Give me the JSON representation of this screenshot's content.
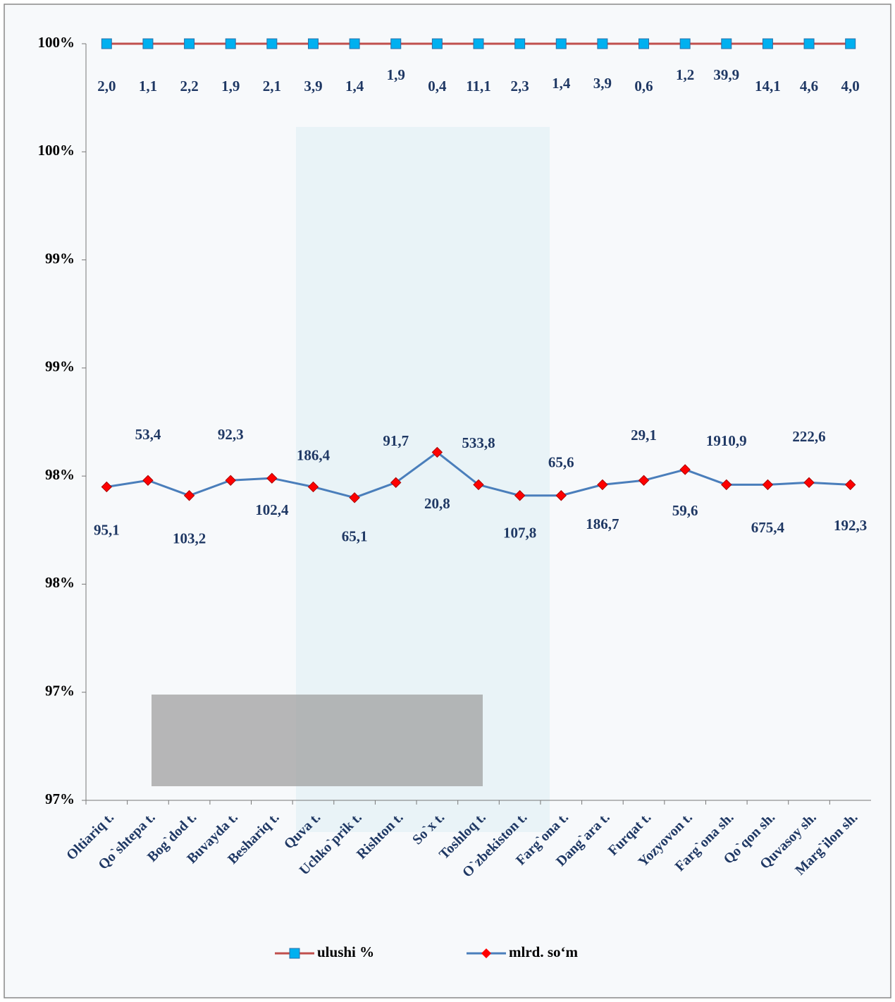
{
  "chart_data": {
    "type": "line",
    "categories": [
      "Oltiariq t.",
      "Qo`shtepa t.",
      "Bog`dod t.",
      "Buvayda t.",
      "Beshariq t.",
      "Quva t.",
      "Uchko`prik t.",
      "Rishton t.",
      "So`x t.",
      "Toshloq t.",
      "O`zbekiston t.",
      "Farg`ona t.",
      "Dang`ara t.",
      "Furqat t.",
      "Yozyovon t.",
      "Farg`ona sh.",
      "Qo`qon sh.",
      "Quvasoy sh.",
      "Marg`ilon sh."
    ],
    "series": [
      {
        "name": "ulushi %",
        "color": "#c0504d",
        "marker_color": "#00b0f0",
        "values": [
          100,
          100,
          100,
          100,
          100,
          100,
          100,
          100,
          100,
          100,
          100,
          100,
          100,
          100,
          100,
          100,
          100,
          100,
          100
        ],
        "point_labels": [
          "2,0",
          "1,1",
          "2,2",
          "1,9",
          "2,1",
          "3,9",
          "1,4",
          "1,9",
          "0,4",
          "11,1",
          "2,3",
          "1,4",
          "3,9",
          "0,6",
          "1,2",
          "39,9",
          "14,1",
          "4,6",
          "4,0"
        ]
      },
      {
        "name": "mlrd. so‘m",
        "color": "#4a7ebb",
        "marker_color": "#ff0000",
        "values": [
          97.95,
          97.98,
          97.91,
          97.98,
          97.99,
          97.95,
          97.9,
          97.97,
          98.11,
          97.96,
          97.91,
          97.91,
          97.96,
          97.98,
          98.03,
          97.96,
          97.96,
          97.97,
          97.96
        ],
        "point_labels": [
          "95,1",
          "53,4",
          "103,2",
          "92,3",
          "102,4",
          "186,4",
          "65,1",
          "91,7",
          "20,8",
          "533,8",
          "107,8",
          "65,6",
          "186,7",
          "29,1",
          "59,6",
          "1910,9",
          "675,4",
          "222,6",
          "192,3"
        ]
      }
    ],
    "ylim": [
      96.5,
      100
    ],
    "yticks": [
      {
        "value": 96.5,
        "label": "97%"
      },
      {
        "value": 97,
        "label": "97%"
      },
      {
        "value": 97.5,
        "label": "98%"
      },
      {
        "value": 98,
        "label": "98%"
      },
      {
        "value": 98.5,
        "label": "99%"
      },
      {
        "value": 99,
        "label": "99%"
      },
      {
        "value": 99.5,
        "label": "100%"
      },
      {
        "value": 100,
        "label": "100%"
      }
    ],
    "grid": false
  }
}
